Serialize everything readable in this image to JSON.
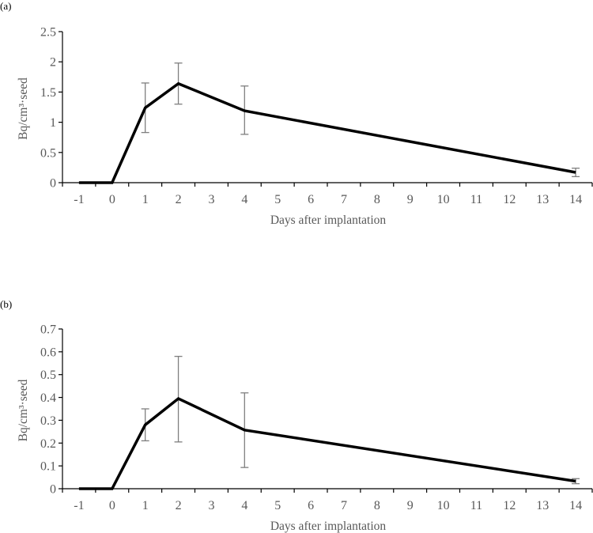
{
  "chart_data": [
    {
      "panel_label": "(a)",
      "type": "line",
      "title": "",
      "xlabel": "Days after implantation",
      "ylabel": "Bq/cm³·seed",
      "categories": [
        "-1",
        "0",
        "1",
        "2",
        "3",
        "4",
        "5",
        "6",
        "7",
        "8",
        "9",
        "10",
        "11",
        "12",
        "13",
        "14"
      ],
      "x": [
        -1,
        0,
        1,
        2,
        4,
        14
      ],
      "values": [
        0,
        0,
        1.24,
        1.64,
        1.19,
        0.17
      ],
      "error_upper": [
        null,
        null,
        1.65,
        1.98,
        1.6,
        0.24
      ],
      "error_lower": [
        null,
        null,
        0.83,
        1.3,
        0.8,
        0.1
      ],
      "ylim": [
        0,
        2.5
      ],
      "yticks": [
        "0",
        "0.5",
        "1",
        "1.5",
        "2",
        "2.5"
      ],
      "ytick_values": [
        0,
        0.5,
        1,
        1.5,
        2,
        2.5
      ],
      "grid": false,
      "legend": null,
      "line_color": "#000000",
      "error_color": "#7f7f7f"
    },
    {
      "panel_label": "(b)",
      "type": "line",
      "title": "",
      "xlabel": "Days after implantation",
      "ylabel": "Bq/cm³·seed",
      "categories": [
        "-1",
        "0",
        "1",
        "2",
        "3",
        "4",
        "5",
        "6",
        "7",
        "8",
        "9",
        "10",
        "11",
        "12",
        "13",
        "14"
      ],
      "x": [
        -1,
        0,
        1,
        2,
        4,
        14
      ],
      "values": [
        0,
        0,
        0.28,
        0.395,
        0.257,
        0.033
      ],
      "error_upper": [
        null,
        null,
        0.35,
        0.58,
        0.42,
        0.044
      ],
      "error_lower": [
        null,
        null,
        0.21,
        0.205,
        0.093,
        0.022
      ],
      "ylim": [
        0,
        0.7
      ],
      "yticks": [
        "0",
        "0.1",
        "0.2",
        "0.3",
        "0.4",
        "0.5",
        "0.6",
        "0.7"
      ],
      "ytick_values": [
        0,
        0.1,
        0.2,
        0.3,
        0.4,
        0.5,
        0.6,
        0.7
      ],
      "grid": false,
      "legend": null,
      "line_color": "#000000",
      "error_color": "#7f7f7f"
    }
  ]
}
